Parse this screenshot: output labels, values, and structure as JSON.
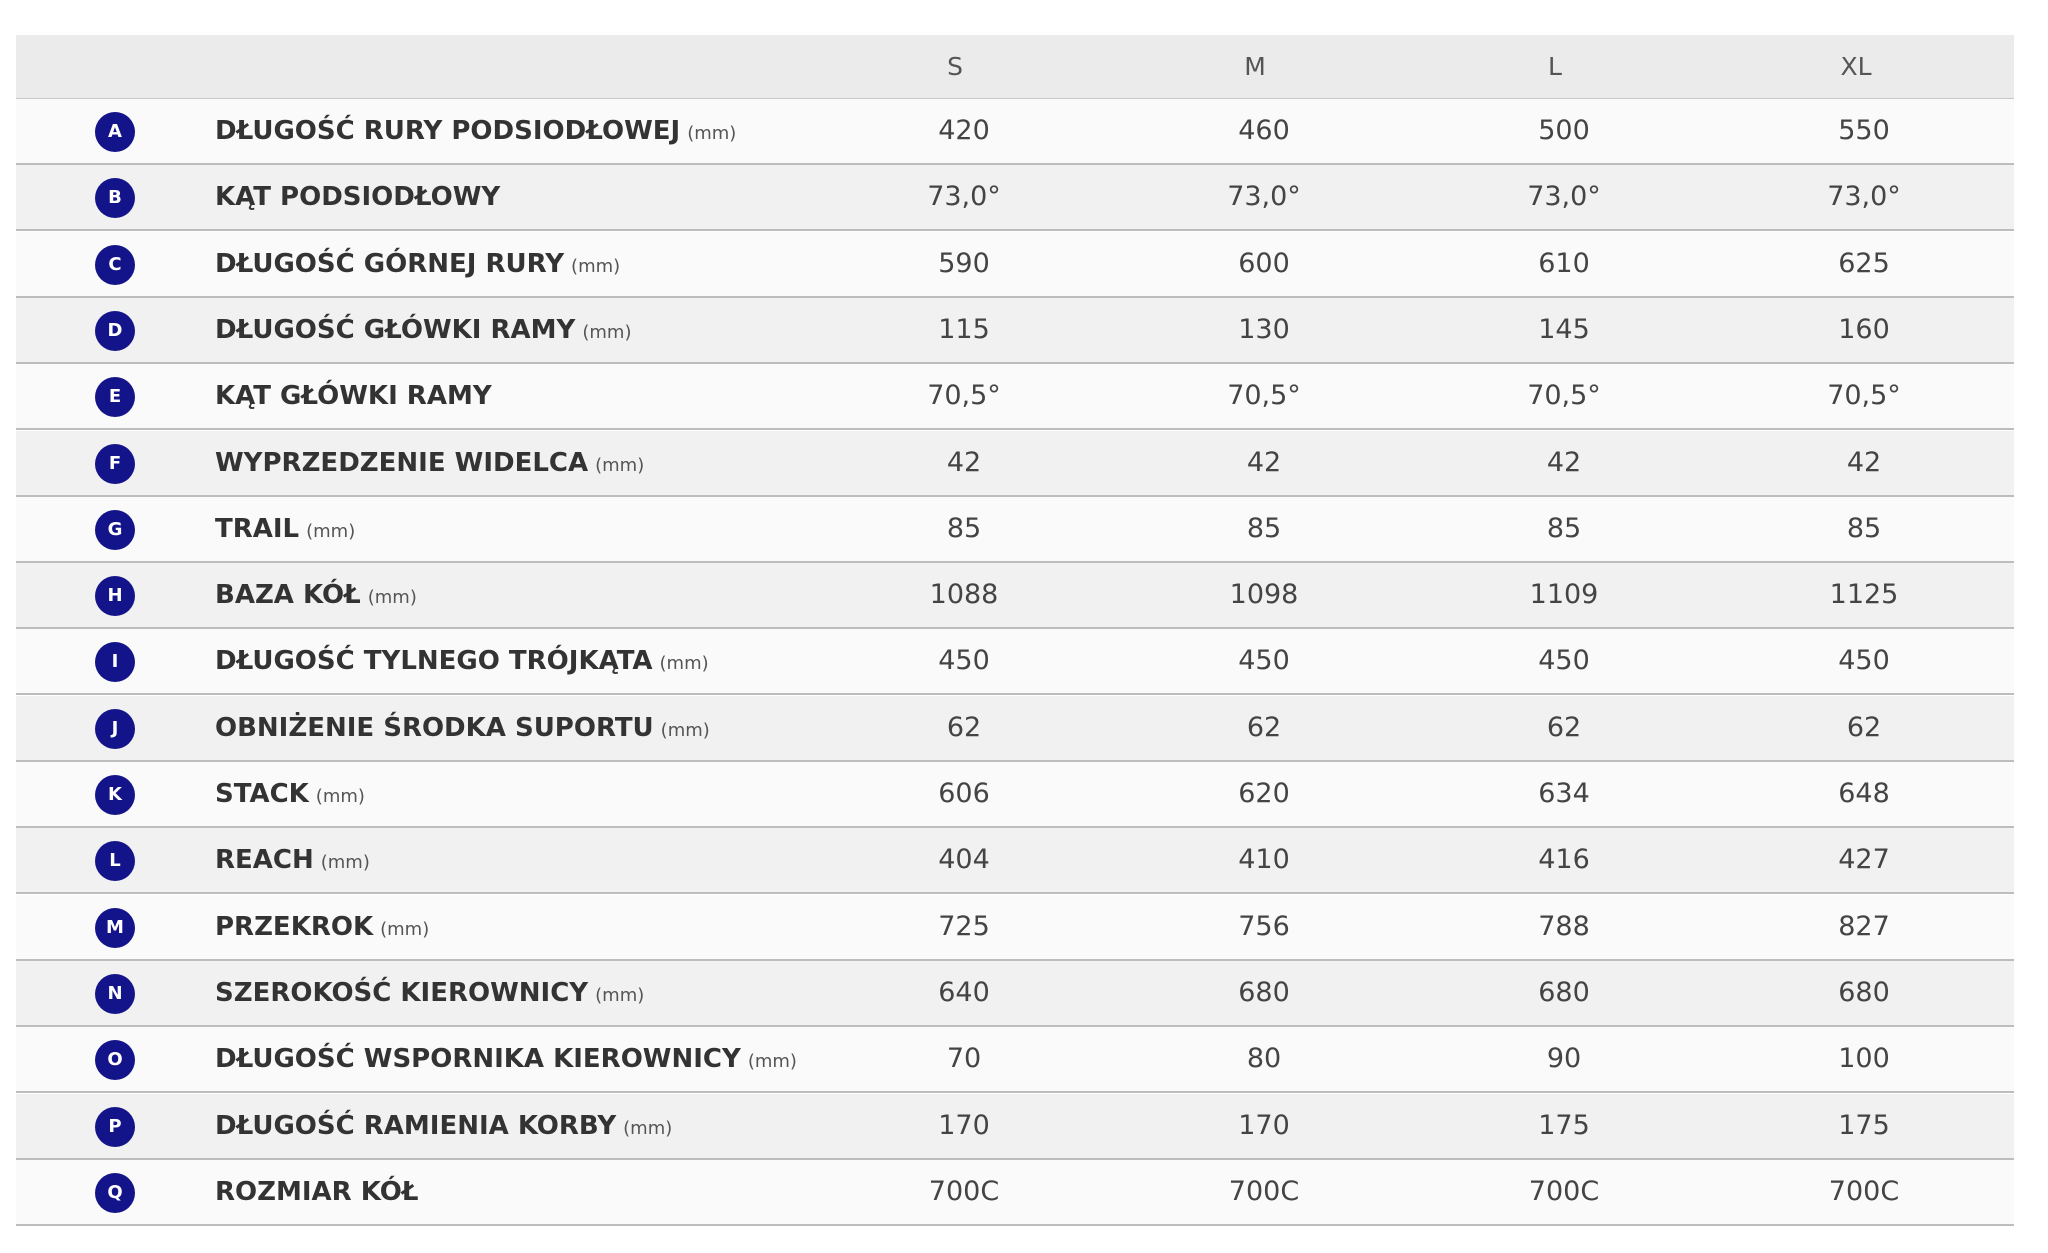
{
  "table": {
    "header": [
      "S",
      "M",
      "L",
      "XL"
    ],
    "rows": [
      {
        "letter": "A",
        "name": "DŁUGOŚĆ RURY PODSIODŁOWEJ",
        "unit": "(mm)",
        "values": [
          "420",
          "460",
          "500",
          "550"
        ]
      },
      {
        "letter": "B",
        "name": "KĄT PODSIODŁOWY",
        "values": [
          "73,0°",
          "73,0°",
          "73,0°",
          "73,0°"
        ]
      },
      {
        "letter": "C",
        "name": "DŁUGOŚĆ GÓRNEJ RURY",
        "unit": "(mm)",
        "values": [
          "590",
          "600",
          "610",
          "625"
        ]
      },
      {
        "letter": "D",
        "name": "DŁUGOŚĆ GŁÓWKI RAMY",
        "unit": "(mm)",
        "values": [
          "115",
          "130",
          "145",
          "160"
        ]
      },
      {
        "letter": "E",
        "name": "KĄT GŁÓWKI RAMY",
        "values": [
          "70,5°",
          "70,5°",
          "70,5°",
          "70,5°"
        ]
      },
      {
        "letter": "F",
        "name": "WYPRZEDZENIE WIDELCA",
        "unit": "(mm)",
        "values": [
          "42",
          "42",
          "42",
          "42"
        ]
      },
      {
        "letter": "G",
        "name": "TRAIL",
        "unit": "(mm)",
        "values": [
          "85",
          "85",
          "85",
          "85"
        ]
      },
      {
        "letter": "H",
        "name": "BAZA KÓŁ",
        "unit": "(mm)",
        "values": [
          "1088",
          "1098",
          "1109",
          "1125"
        ]
      },
      {
        "letter": "I",
        "name": "DŁUGOŚĆ TYLNEGO TRÓJKĄTA",
        "unit": "(mm)",
        "values": [
          "450",
          "450",
          "450",
          "450"
        ]
      },
      {
        "letter": "J",
        "name": "OBNIŻENIE ŚRODKA SUPORTU",
        "unit": "(mm)",
        "values": [
          "62",
          "62",
          "62",
          "62"
        ]
      },
      {
        "letter": "K",
        "name": "STACK",
        "unit": "(mm)",
        "values": [
          "606",
          "620",
          "634",
          "648"
        ]
      },
      {
        "letter": "L",
        "name": "REACH",
        "unit": "(mm)",
        "values": [
          "404",
          "410",
          "416",
          "427"
        ]
      },
      {
        "letter": "M",
        "name": "PRZEKROK",
        "unit": "(mm)",
        "values": [
          "725",
          "756",
          "788",
          "827"
        ]
      },
      {
        "letter": "N",
        "name": "SZEROKOŚĆ KIEROWNICY",
        "unit": "(mm)",
        "values": [
          "640",
          "680",
          "680",
          "680"
        ]
      },
      {
        "letter": "O",
        "name": "DŁUGOŚĆ WSPORNIKA KIEROWNICY",
        "unit": "(mm)",
        "values": [
          "70",
          "80",
          "90",
          "100"
        ]
      },
      {
        "letter": "P",
        "name": "DŁUGOŚĆ RAMIENIA KORBY",
        "unit": "(mm)",
        "values": [
          "170",
          "170",
          "175",
          "175"
        ]
      },
      {
        "letter": "Q",
        "name": "ROZMIAR KÓŁ",
        "values": [
          "700C",
          "700C",
          "700C",
          "700C"
        ]
      }
    ]
  }
}
